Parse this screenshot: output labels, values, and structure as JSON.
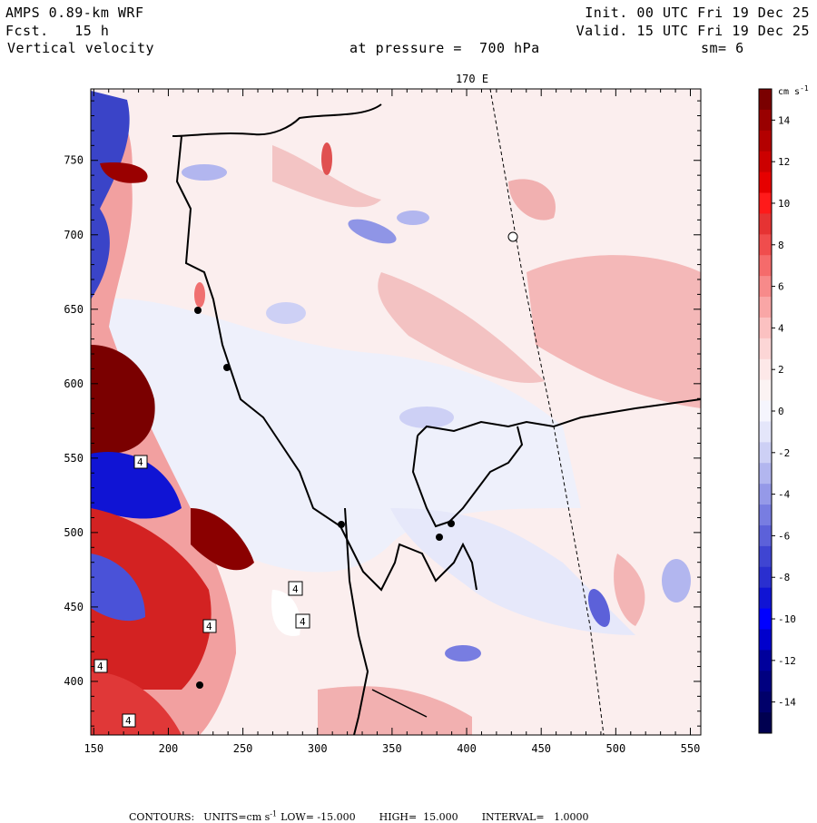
{
  "header": {
    "model": "AMPS 0.89-km WRF",
    "forecast": "Fcst.   15 h",
    "field": "Vertical velocity",
    "init": "Init. 00 UTC Fri 19 Dec 25",
    "valid": "Valid. 15 UTC Fri 19 Dec 25",
    "pressure": "at pressure =  700 hPa",
    "smoothing": "sm= 6"
  },
  "map": {
    "meridian_label": "170 E",
    "x_ticks": [
      "150",
      "200",
      "250",
      "300",
      "350",
      "400",
      "450",
      "500",
      "550"
    ],
    "y_ticks": [
      "750",
      "700",
      "650",
      "600",
      "550",
      "500",
      "450",
      "400"
    ],
    "contour_box_label": "4"
  },
  "colorbar": {
    "units": "cm s",
    "units_exp": "-1",
    "labels": [
      "14",
      "12",
      "10",
      "8",
      "6",
      "4",
      "2",
      "0",
      "-2",
      "-4",
      "-6",
      "-8",
      "-10",
      "-12",
      "-14"
    ],
    "colors": [
      "#7a0000",
      "#990000",
      "#b30000",
      "#cc0000",
      "#e60000",
      "#ff1a1a",
      "#e63333",
      "#f04d4d",
      "#f56b6b",
      "#f78a8a",
      "#f9a6a6",
      "#fbc1c1",
      "#fcd6d6",
      "#fde8e8",
      "#fbf3f3",
      "#f5f5fd",
      "#e4e6fa",
      "#cdd0f5",
      "#b2b6ef",
      "#9599e8",
      "#787de1",
      "#5c61d9",
      "#3f45d2",
      "#2a2fcf",
      "#1014d4",
      "#0000ff",
      "#0000cc",
      "#00009c",
      "#000080",
      "#00006a",
      "#000050"
    ]
  },
  "footer": {
    "contours": "CONTOURS:",
    "units": "UNITS=cm s",
    "units_exp": "-1",
    "low": "LOW= -15.000",
    "high": "HIGH=  15.000",
    "interval": "INTERVAL=   1.0000"
  }
}
